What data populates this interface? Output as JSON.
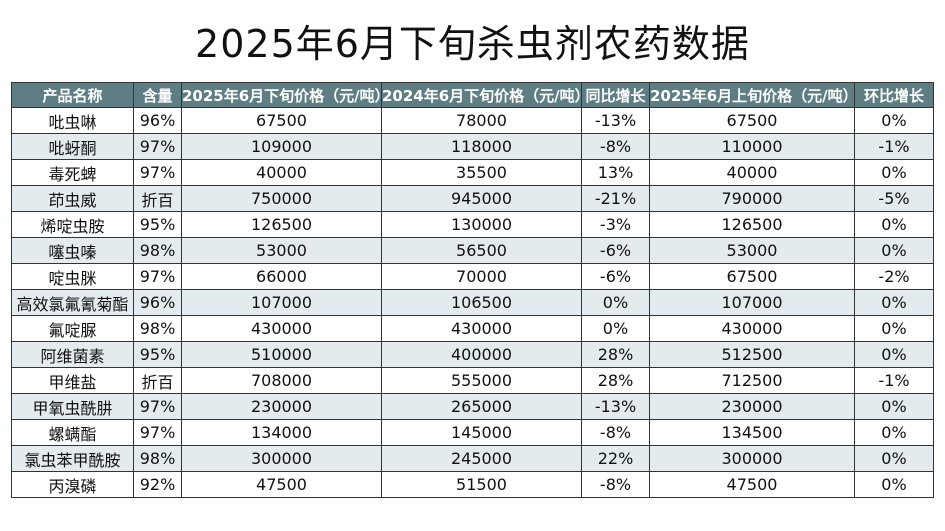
{
  "title": "2025年6月下旬杀虫剂农药数据",
  "colors": {
    "header_bg": "#5e7e84",
    "header_text": "#ffffff",
    "row_alt_bg": "#e3ebee",
    "border": "#333333"
  },
  "chart_data": {
    "type": "table",
    "title": "2025年6月下旬杀虫剂农药数据",
    "columns": [
      "产品名称",
      "含量",
      "2025年6月下旬价格（元/吨）",
      "2024年6月下旬价格（元/吨）",
      "同比增长",
      "2025年6月上旬价格（元/吨）",
      "环比增长"
    ],
    "rows": [
      [
        "吡虫啉",
        "96%",
        "67500",
        "78000",
        "-13%",
        "67500",
        "0%"
      ],
      [
        "吡蚜酮",
        "97%",
        "109000",
        "118000",
        "-8%",
        "110000",
        "-1%"
      ],
      [
        "毒死蜱",
        "97%",
        "40000",
        "35500",
        "13%",
        "40000",
        "0%"
      ],
      [
        "茚虫威",
        "折百",
        "750000",
        "945000",
        "-21%",
        "790000",
        "-5%"
      ],
      [
        "烯啶虫胺",
        "95%",
        "126500",
        "130000",
        "-3%",
        "126500",
        "0%"
      ],
      [
        "噻虫嗪",
        "98%",
        "53000",
        "56500",
        "-6%",
        "53000",
        "0%"
      ],
      [
        "啶虫脒",
        "97%",
        "66000",
        "70000",
        "-6%",
        "67500",
        "-2%"
      ],
      [
        "高效氯氟氰菊酯",
        "96%",
        "107000",
        "106500",
        "0%",
        "107000",
        "0%"
      ],
      [
        "氟啶脲",
        "98%",
        "430000",
        "430000",
        "0%",
        "430000",
        "0%"
      ],
      [
        "阿维菌素",
        "95%",
        "510000",
        "400000",
        "28%",
        "512500",
        "0%"
      ],
      [
        "甲维盐",
        "折百",
        "708000",
        "555000",
        "28%",
        "712500",
        "-1%"
      ],
      [
        "甲氧虫酰肼",
        "97%",
        "230000",
        "265000",
        "-13%",
        "230000",
        "0%"
      ],
      [
        "螺螨酯",
        "97%",
        "134000",
        "145000",
        "-8%",
        "134500",
        "0%"
      ],
      [
        "氯虫苯甲酰胺",
        "98%",
        "300000",
        "245000",
        "22%",
        "300000",
        "0%"
      ],
      [
        "丙溴磷",
        "92%",
        "47500",
        "51500",
        "-8%",
        "47500",
        "0%"
      ]
    ]
  }
}
